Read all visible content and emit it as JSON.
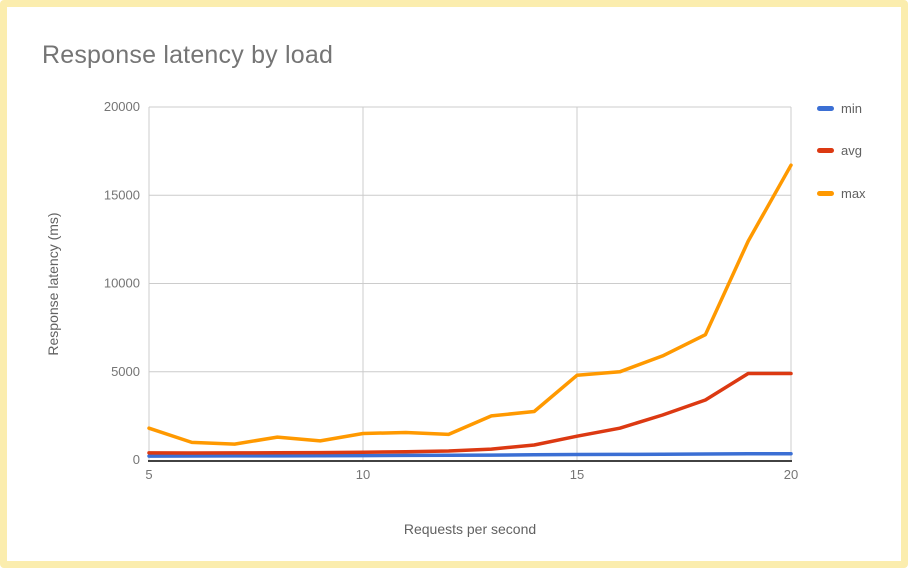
{
  "card": {
    "border_color": "#FBEDAE",
    "background_color": "#FFFFFF"
  },
  "chart_data": {
    "type": "line",
    "title": "Response latency by load",
    "xlabel": "Requests per second",
    "ylabel": "Response latency (ms)",
    "xlim": [
      5,
      20
    ],
    "ylim": [
      0,
      20000
    ],
    "xticks": [
      "5",
      "10",
      "15",
      "20"
    ],
    "xtick_values": [
      5,
      10,
      15,
      20
    ],
    "yticks": [
      "0",
      "5000",
      "10000",
      "15000",
      "20000"
    ],
    "ytick_values": [
      0,
      5000,
      10000,
      15000,
      20000
    ],
    "grid": true,
    "legend_position": "right",
    "x": [
      5,
      6,
      7,
      8,
      9,
      10,
      11,
      12,
      13,
      14,
      15,
      16,
      17,
      18,
      19,
      20
    ],
    "series": [
      {
        "name": "min",
        "color": "#3B6FD4",
        "values": [
          220,
          225,
          230,
          235,
          240,
          250,
          260,
          270,
          280,
          295,
          310,
          320,
          330,
          340,
          350,
          355
        ]
      },
      {
        "name": "avg",
        "color": "#DC3912",
        "values": [
          400,
          395,
          400,
          410,
          420,
          440,
          470,
          510,
          620,
          850,
          1350,
          1800,
          2550,
          3400,
          4900,
          4900
        ]
      },
      {
        "name": "max",
        "color": "#FF9900",
        "values": [
          1800,
          1000,
          900,
          1300,
          1080,
          1500,
          1560,
          1450,
          2500,
          2750,
          4800,
          5000,
          5900,
          7100,
          12400,
          16700
        ]
      }
    ],
    "style": {
      "gridline_color": "#CCCCCC",
      "baseline_color": "#424242",
      "tick_label_color": "#757575",
      "title_color": "#757575"
    }
  }
}
